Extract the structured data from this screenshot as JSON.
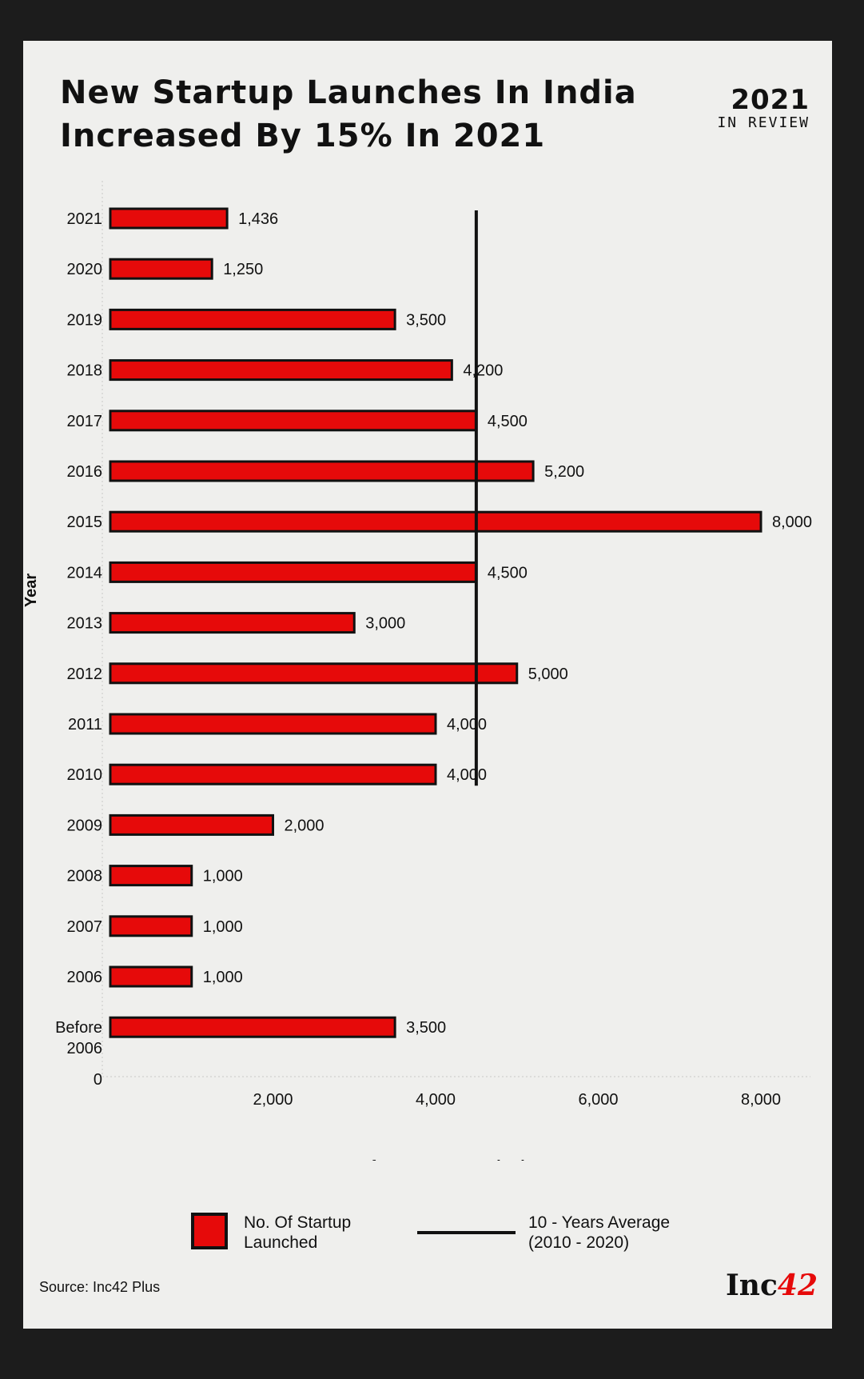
{
  "header": {
    "title": "New Startup Launches In India Increased By 15% In 2021",
    "badge_year": "2021",
    "badge_sub": "IN REVIEW"
  },
  "chart_data": {
    "type": "bar",
    "orientation": "horizontal",
    "categories": [
      "2021",
      "2020",
      "2019",
      "2018",
      "2017",
      "2016",
      "2015",
      "2014",
      "2013",
      "2012",
      "2011",
      "2010",
      "2009",
      "2008",
      "2007",
      "2006",
      "Before 2006"
    ],
    "values": [
      1436,
      1250,
      3500,
      4200,
      4500,
      5200,
      8000,
      4500,
      3000,
      5000,
      4000,
      4000,
      2000,
      1000,
      1000,
      1000,
      3500
    ],
    "value_labels": [
      "1,436",
      "1,250",
      "3,500",
      "4,200",
      "4,500",
      "5,200",
      "8,000",
      "4,500",
      "3,000",
      "5,000",
      "4,000",
      "4,000",
      "2,000",
      "1,000",
      "1,000",
      "1,000",
      "3,500"
    ],
    "xlabel": "No. of Startups Launched",
    "ylabel": "Year",
    "x_ticks": [
      "0",
      "2,000",
      "4,000",
      "6,000",
      "8,000"
    ],
    "x_tick_values": [
      0,
      2000,
      4000,
      6000,
      8000
    ],
    "reference_line": {
      "name": "10 - Years Average (2010 - 2020)",
      "value": 4500,
      "from": "2021",
      "to": "2010"
    },
    "legend": {
      "position": "bottom",
      "items": [
        "No. Of Startup Launched",
        "10 - Years Average (2010 - 2020)"
      ]
    },
    "grid": false,
    "colors": {
      "bar": "#e60a0a",
      "outline": "#111111"
    }
  },
  "legend": {
    "bar_label": "No. Of Startup\nLaunched",
    "line_label": "10 - Years Average\n(2010 - 2020)"
  },
  "footer": {
    "source": "Source: Inc42 Plus",
    "logo_main": "Inc",
    "logo_accent": "42"
  }
}
